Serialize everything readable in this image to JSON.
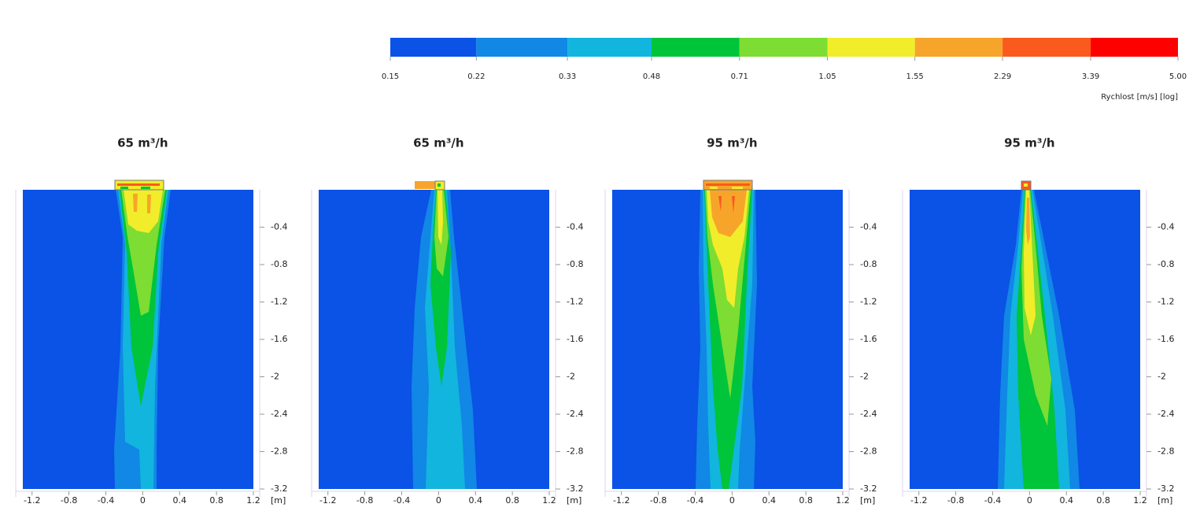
{
  "colorbar": {
    "title": "Rychlost  [m/s] [log]",
    "log": true,
    "lim": [
      0.15,
      5
    ],
    "ticks": [
      0.15,
      0.22,
      0.33,
      0.48,
      0.71,
      1.05,
      1.55,
      2.29,
      3.39,
      {
        "value": 5,
        "label": "5.00"
      }
    ],
    "colors": [
      "#0b52e6",
      "#1187e6",
      "#12b5dd",
      "#00c43a",
      "#7ddd32",
      "#f2ed2a",
      "#f7a52a",
      "#fa5a1e",
      "#ff0000"
    ]
  },
  "chart_data": [
    {
      "type": "contour",
      "title": "65 m³/h",
      "xlim": [
        -1.3,
        1.2
      ],
      "ylim": [
        -3.2,
        0
      ],
      "xticks": [
        -1.2,
        -0.8,
        -0.4,
        0,
        0.4,
        0.8,
        1.2
      ],
      "yticks": [
        -0.4,
        -0.8,
        -1.2,
        -1.6,
        -2.0,
        -2.4,
        -2.8,
        -3.2
      ],
      "xlabel": "[m]"
    },
    {
      "type": "contour",
      "title": "65 m³/h",
      "xlim": [
        -1.3,
        1.2
      ],
      "ylim": [
        -3.2,
        0
      ],
      "xticks": [
        -1.2,
        -0.8,
        -0.4,
        0,
        0.4,
        0.8,
        1.2
      ],
      "yticks": [
        -0.4,
        -0.8,
        -1.2,
        -1.6,
        -2.0,
        -2.4,
        -2.8,
        -3.2
      ],
      "xlabel": "[m]"
    },
    {
      "type": "contour",
      "title": "95 m³/h",
      "xlim": [
        -1.3,
        1.2
      ],
      "ylim": [
        -3.2,
        0
      ],
      "xticks": [
        -1.2,
        -0.8,
        -0.4,
        0,
        0.4,
        0.8,
        1.2
      ],
      "yticks": [
        -0.4,
        -0.8,
        -1.2,
        -1.6,
        -2.0,
        -2.4,
        -2.8,
        -3.2
      ],
      "xlabel": "[m]"
    },
    {
      "type": "contour",
      "title": "95 m³/h",
      "xlim": [
        -1.3,
        1.2
      ],
      "ylim": [
        -3.2,
        0
      ],
      "xticks": [
        -1.2,
        -0.8,
        -0.4,
        0,
        0.4,
        0.8,
        1.2
      ],
      "yticks": [
        -0.4,
        -0.8,
        -1.2,
        -1.6,
        -2.0,
        -2.4,
        -2.8,
        -3.2
      ],
      "xlabel": "[m]"
    }
  ]
}
